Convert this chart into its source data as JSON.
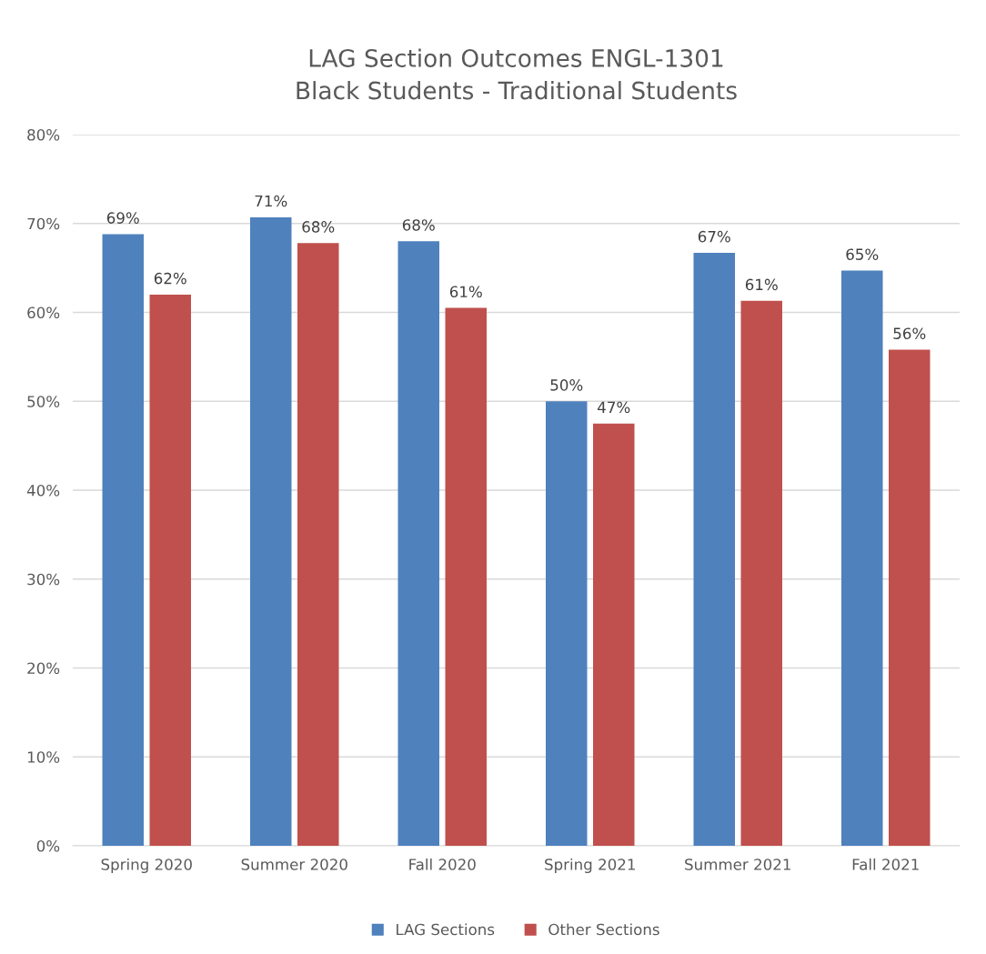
{
  "chart_data": {
    "type": "bar",
    "title": "LAG Section Outcomes ENGL-1301\nBlack Students - Traditional Students",
    "categories": [
      "Spring 2020",
      "Summer 2020",
      "Fall 2020",
      "Spring 2021",
      "Summer 2021",
      "Fall 2021"
    ],
    "series": [
      {
        "name": "LAG Sections",
        "color": "#4f81bd",
        "values": [
          68.8,
          70.7,
          68.0,
          50.0,
          66.7,
          64.7
        ],
        "value_labels": [
          "69%",
          "71%",
          "68%",
          "50%",
          "67%",
          "65%"
        ]
      },
      {
        "name": "Other Sections",
        "color": "#c0504d",
        "values": [
          62.0,
          67.8,
          60.5,
          47.5,
          61.3,
          55.8
        ],
        "value_labels": [
          "62%",
          "68%",
          "61%",
          "47%",
          "61%",
          "56%"
        ]
      }
    ],
    "ylim": [
      0,
      80
    ],
    "yticks": [
      {
        "value": 0,
        "label": "0%"
      },
      {
        "value": 10,
        "label": "10%"
      },
      {
        "value": 20,
        "label": "20%"
      },
      {
        "value": 30,
        "label": "30%"
      },
      {
        "value": 40,
        "label": "40%"
      },
      {
        "value": 50,
        "label": "50%"
      },
      {
        "value": 60,
        "label": "60%"
      },
      {
        "value": 70,
        "label": "70%"
      },
      {
        "value": 80,
        "label": "80%"
      }
    ],
    "grid": "y",
    "legend": "bottom"
  }
}
